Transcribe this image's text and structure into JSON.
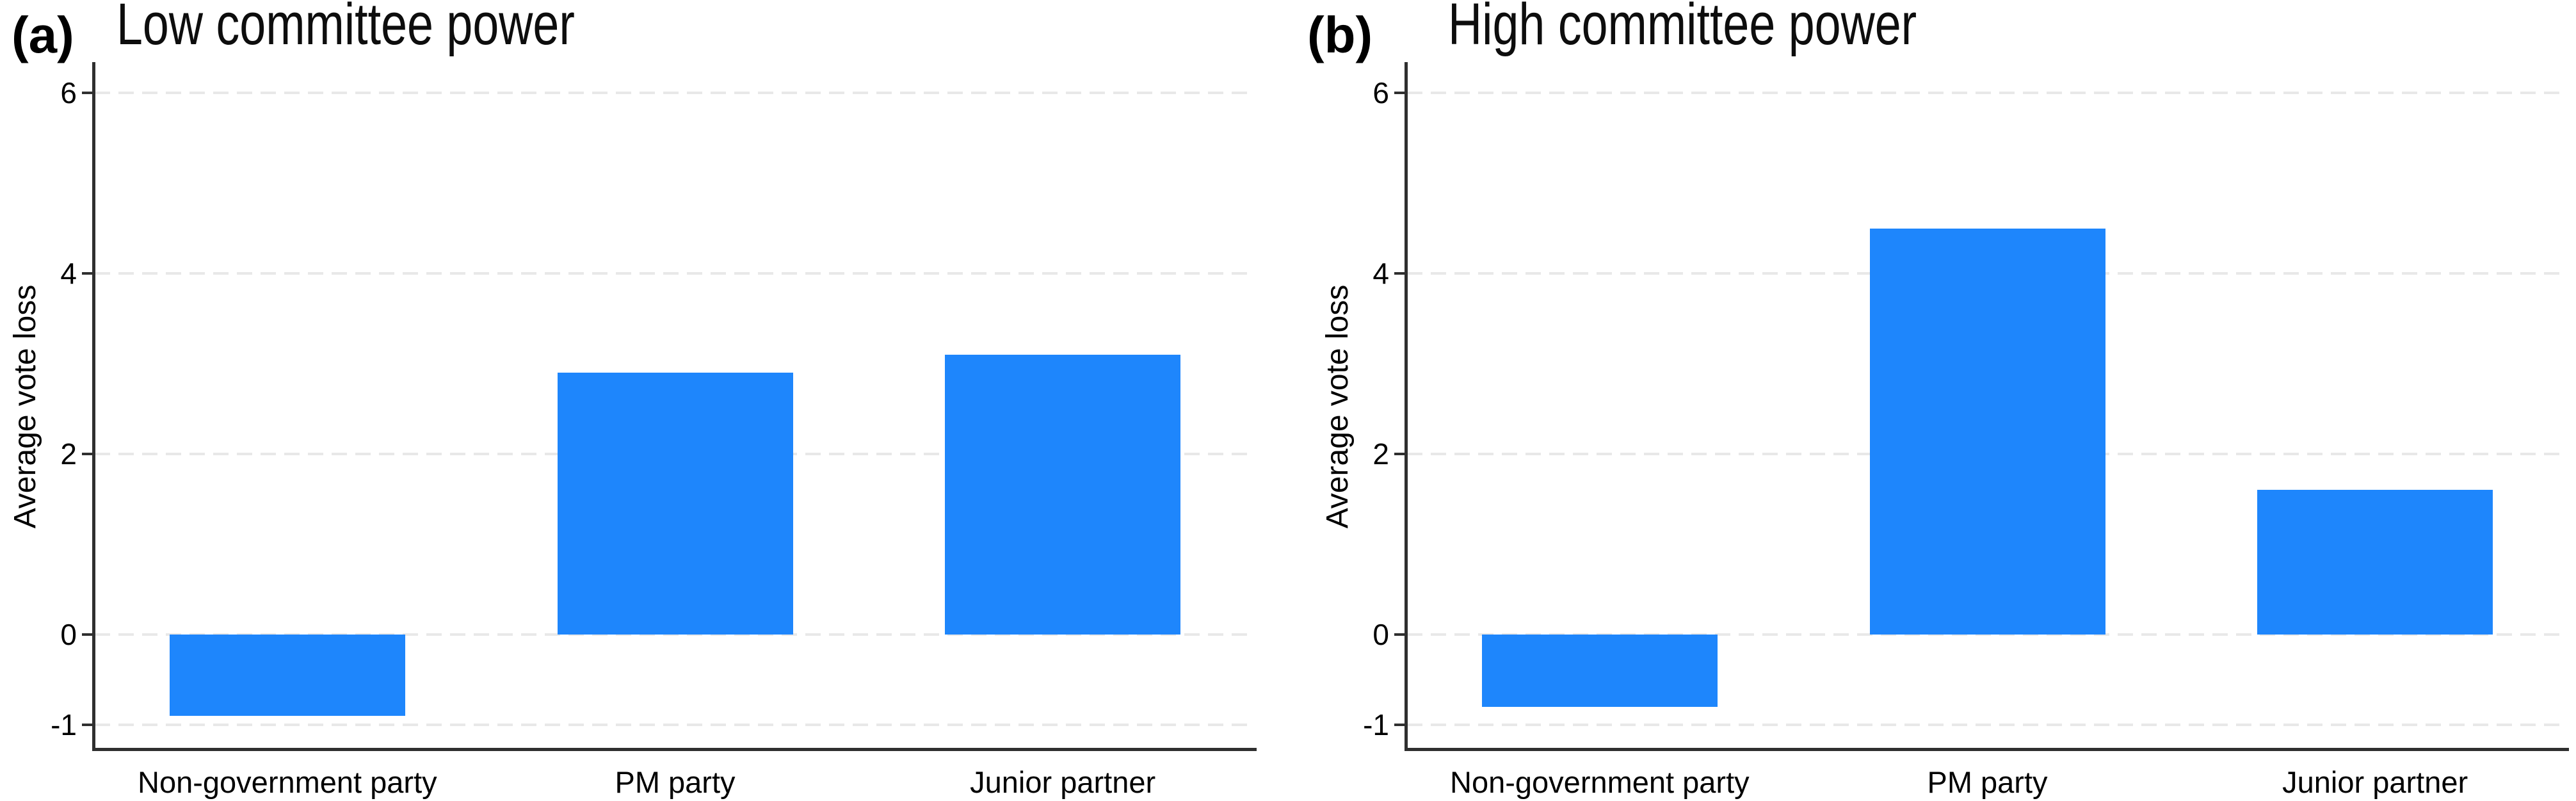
{
  "figure": {
    "background": "#ffffff",
    "bar_color": "#1e86fc",
    "grid_color": "#e8e8e8",
    "axis_color": "#2f2f2f",
    "text_color": "#000000"
  },
  "chart_data": [
    {
      "type": "bar",
      "panel_label": "(a)",
      "title": "Low committee power",
      "categories": [
        "Non-government party",
        "PM party",
        "Junior partner"
      ],
      "values": [
        -0.9,
        2.9,
        3.1
      ],
      "xlabel": "",
      "ylabel": "Average vote loss",
      "yticks": [
        6,
        4,
        2,
        0,
        -1
      ],
      "ylim": [
        -1.3,
        6.35
      ],
      "grid": "horizontal-dashed",
      "legend": "none"
    },
    {
      "type": "bar",
      "panel_label": "(b)",
      "title": "High committee power",
      "categories": [
        "Non-government party",
        "PM party",
        "Junior partner"
      ],
      "values": [
        -0.8,
        4.5,
        1.6
      ],
      "xlabel": "",
      "ylabel": "Average vote loss",
      "yticks": [
        6,
        4,
        2,
        0,
        -1
      ],
      "ylim": [
        -1.3,
        6.35
      ],
      "grid": "horizontal-dashed",
      "legend": "none"
    }
  ]
}
